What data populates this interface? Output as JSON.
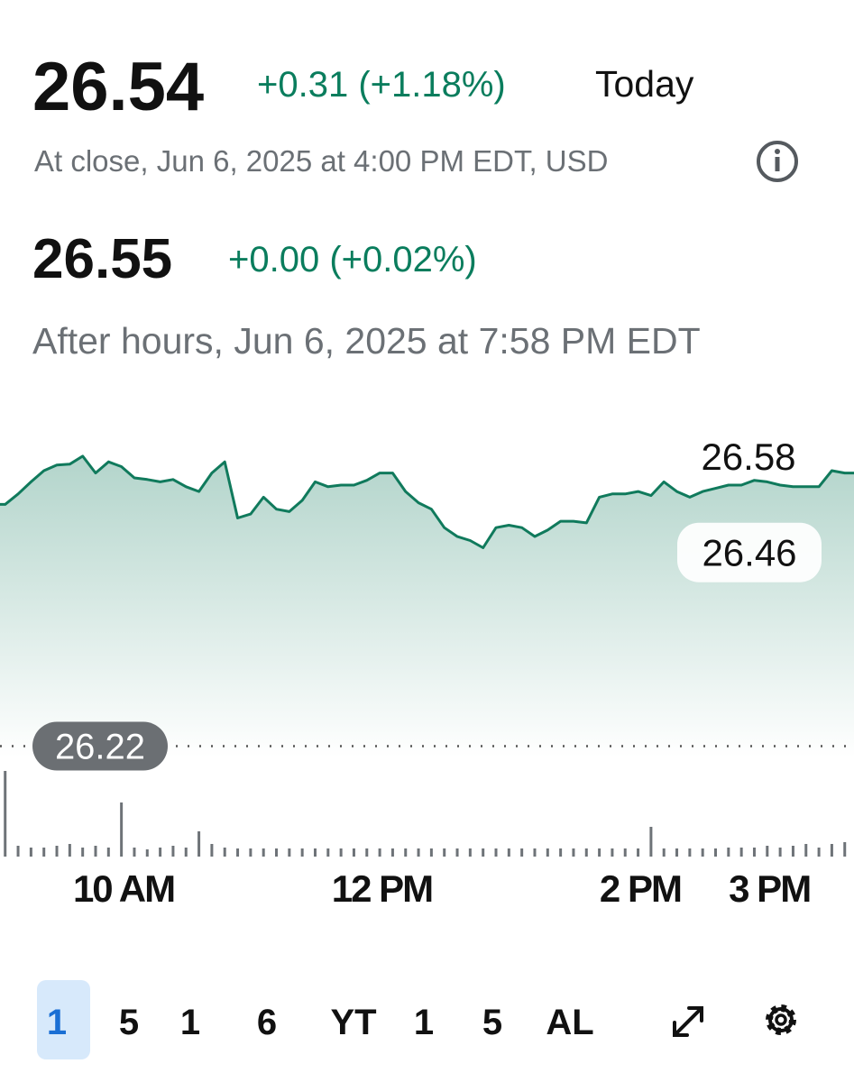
{
  "header": {
    "price": "26.54",
    "change": "+0.31 (+1.18%)",
    "period": "Today",
    "close_note": "At close, Jun 6, 2025 at 4:00 PM EDT, USD",
    "after_hours_price": "26.55",
    "after_hours_change": "+0.00 (+0.02%)",
    "after_hours_note": "After hours, Jun 6, 2025 at 7:58 PM EDT"
  },
  "chart_data": {
    "type": "line",
    "color": "#107a5c",
    "x": [
      545,
      551,
      557,
      563,
      569,
      575,
      581,
      587,
      593,
      599,
      605,
      611,
      617,
      623,
      629,
      635,
      641,
      647,
      653,
      659,
      665,
      671,
      677,
      683,
      689,
      695,
      701,
      707,
      713,
      719,
      725,
      731,
      737,
      743,
      749,
      755,
      761,
      767,
      773,
      779,
      785,
      791,
      797,
      803,
      809,
      815,
      821,
      827,
      833,
      839,
      845,
      851,
      857,
      863,
      869,
      875,
      881,
      887,
      893,
      899,
      905,
      911,
      917,
      923,
      929,
      935
    ],
    "values": [
      26.521,
      26.534,
      26.549,
      26.563,
      26.57,
      26.571,
      26.581,
      26.56,
      26.574,
      26.568,
      26.554,
      26.552,
      26.549,
      26.552,
      26.543,
      26.537,
      26.56,
      26.574,
      26.504,
      26.509,
      26.53,
      26.515,
      26.512,
      26.526,
      26.549,
      26.543,
      26.545,
      26.545,
      26.551,
      26.56,
      26.56,
      26.537,
      26.523,
      26.515,
      26.492,
      26.481,
      26.476,
      26.467,
      26.492,
      26.495,
      26.492,
      26.481,
      26.489,
      26.5,
      26.5,
      26.498,
      26.53,
      26.534,
      26.534,
      26.537,
      26.532,
      26.549,
      26.537,
      26.53,
      26.537,
      26.541,
      26.545,
      26.545,
      26.551,
      26.549,
      26.545,
      26.543,
      26.543,
      26.543,
      26.563,
      26.56
    ],
    "volume": [
      95,
      12,
      10,
      10,
      12,
      14,
      10,
      12,
      10,
      60,
      10,
      8,
      10,
      12,
      10,
      28,
      14,
      10,
      9,
      9,
      9,
      9,
      9,
      9,
      9,
      9,
      9,
      9,
      9,
      9,
      9,
      9,
      9,
      9,
      9,
      9,
      9,
      9,
      9,
      9,
      9,
      9,
      9,
      9,
      9,
      9,
      9,
      9,
      9,
      9,
      33,
      9,
      9,
      9,
      9,
      9,
      10,
      10,
      10,
      12,
      10,
      12,
      14,
      10,
      14,
      16
    ],
    "volume_color": "#6e7378",
    "high_label": 26.58,
    "low_label": 26.46,
    "previous_close": 26.22,
    "xlim": [
      542.6,
      939.3
    ],
    "ylim": [
      26.206,
      26.655
    ],
    "xticks": [
      {
        "value": 600,
        "label": "10 AM"
      },
      {
        "value": 720,
        "label": "12 PM"
      },
      {
        "value": 840,
        "label": "2 PM"
      },
      {
        "value": 900,
        "label": "3 PM"
      }
    ]
  },
  "range_buttons": [
    "1",
    "5",
    "1",
    "6",
    "YT",
    "1",
    "5",
    "AL"
  ]
}
